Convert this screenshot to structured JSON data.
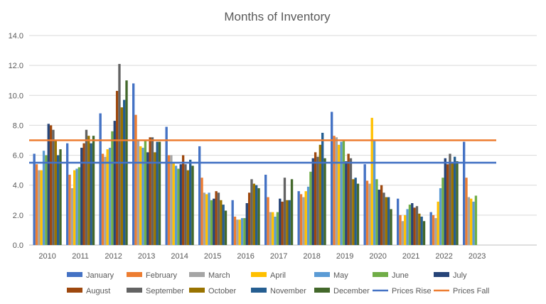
{
  "chart_data": {
    "type": "bar",
    "title": "Months of Inventory",
    "xlabel": "",
    "ylabel": "",
    "ylim": [
      0,
      14
    ],
    "yticks": [
      "0.0",
      "2.0",
      "4.0",
      "6.0",
      "8.0",
      "10.0",
      "12.0",
      "14.0"
    ],
    "grid": true,
    "legend_position": "bottom",
    "categories": [
      "2010",
      "2011",
      "2012",
      "2013",
      "2014",
      "2015",
      "2016",
      "2017",
      "2018",
      "2019",
      "2020",
      "2021",
      "2022",
      "2023"
    ],
    "series": [
      {
        "name": "January",
        "color": "#4472C4",
        "values": [
          6.1,
          6.8,
          8.8,
          10.8,
          7.9,
          6.6,
          3.0,
          4.7,
          3.6,
          8.9,
          5.4,
          3.1,
          2.2,
          6.9
        ]
      },
      {
        "name": "February",
        "color": "#ED7D31",
        "values": [
          5.4,
          4.7,
          6.1,
          8.7,
          6.0,
          4.5,
          1.9,
          3.2,
          3.4,
          7.3,
          4.3,
          2.0,
          2.0,
          4.5
        ]
      },
      {
        "name": "March",
        "color": "#A5A5A5",
        "values": [
          5.0,
          3.8,
          5.9,
          7.0,
          6.0,
          3.5,
          1.7,
          2.2,
          3.2,
          7.2,
          4.1,
          1.6,
          1.8,
          3.2
        ]
      },
      {
        "name": "April",
        "color": "#FFC000",
        "values": [
          5.0,
          5.0,
          6.4,
          6.6,
          5.5,
          3.4,
          1.7,
          2.2,
          3.6,
          6.7,
          8.5,
          2.0,
          2.9,
          3.1
        ]
      },
      {
        "name": "May",
        "color": "#5B9BD5",
        "values": [
          6.3,
          5.1,
          6.5,
          6.5,
          5.3,
          3.5,
          1.8,
          1.9,
          3.9,
          6.9,
          7.0,
          2.4,
          3.8,
          2.9
        ]
      },
      {
        "name": "June",
        "color": "#70AD47",
        "values": [
          6.0,
          5.2,
          7.6,
          7.0,
          5.1,
          3.0,
          1.8,
          2.2,
          4.9,
          7.0,
          4.4,
          2.7,
          4.5,
          3.3
        ]
      },
      {
        "name": "July",
        "color": "#264478",
        "values": [
          8.1,
          6.5,
          8.3,
          6.2,
          5.4,
          3.1,
          2.8,
          3.1,
          5.8,
          5.6,
          3.7,
          2.8,
          5.8,
          null
        ]
      },
      {
        "name": "August",
        "color": "#9E480E",
        "values": [
          8.0,
          6.8,
          10.3,
          7.2,
          6.0,
          3.6,
          3.5,
          2.9,
          6.2,
          6.1,
          4.0,
          2.5,
          5.4,
          null
        ]
      },
      {
        "name": "September",
        "color": "#636363",
        "values": [
          7.7,
          7.7,
          12.1,
          7.2,
          5.4,
          3.5,
          4.4,
          4.5,
          5.9,
          5.8,
          3.5,
          2.6,
          6.1,
          null
        ]
      },
      {
        "name": "October",
        "color": "#997300",
        "values": [
          7.0,
          7.3,
          9.2,
          6.2,
          5.0,
          3.0,
          4.1,
          3.0,
          6.7,
          4.4,
          3.2,
          2.1,
          5.5,
          null
        ]
      },
      {
        "name": "November",
        "color": "#255E91",
        "values": [
          6.0,
          6.8,
          9.7,
          6.9,
          5.7,
          2.7,
          4.0,
          3.0,
          7.5,
          4.5,
          3.2,
          1.9,
          5.9,
          null
        ]
      },
      {
        "name": "December",
        "color": "#43682B",
        "values": [
          6.4,
          7.3,
          11.0,
          6.9,
          5.3,
          2.3,
          3.8,
          4.4,
          5.8,
          4.1,
          2.4,
          1.6,
          5.6,
          null
        ]
      }
    ],
    "reference_lines": [
      {
        "name": "Prices Rise",
        "color": "#4472C4",
        "value": 5.5
      },
      {
        "name": "Prices Fall",
        "color": "#ED7D31",
        "value": 7.0
      }
    ]
  }
}
